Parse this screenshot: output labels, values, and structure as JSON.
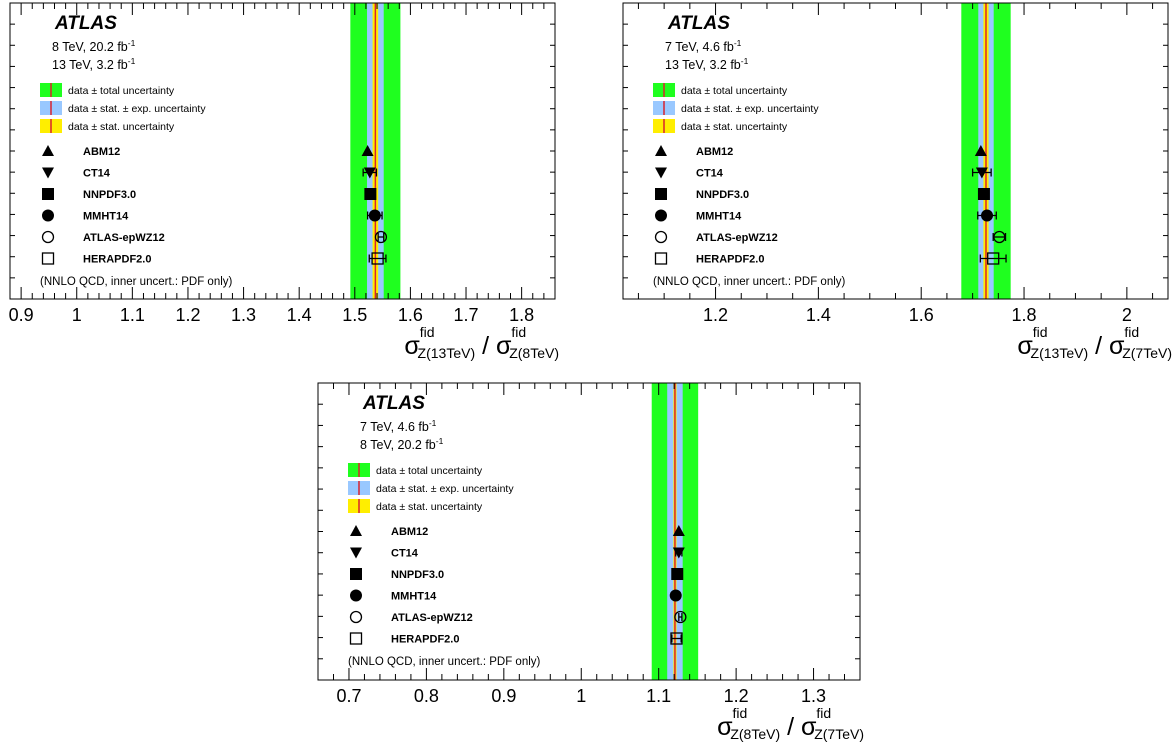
{
  "chart_data": [
    {
      "type": "scatter",
      "experiment": "ATLAS",
      "info_lines": [
        {
          "text": "8 TeV, 20.2 fb",
          "sup": "-1"
        },
        {
          "text": "13 TeV, 3.2 fb",
          "sup": "-1"
        }
      ],
      "legend": [
        "data ± total uncertainty",
        "data ± stat. ± exp. uncertainty",
        "data ± stat. uncertainty"
      ],
      "note": "(NNLO QCD, inner uncert.: PDF only)",
      "xlabel": {
        "sigma": "σ",
        "sup": "fid",
        "sub1": "Z(13TeV)",
        "slash": "/",
        "sub2": "Z(8TeV)"
      },
      "xlim": [
        0.88,
        1.86
      ],
      "ticks": [
        0.9,
        1.0,
        1.1,
        1.2,
        1.3,
        1.4,
        1.5,
        1.6,
        1.7,
        1.8
      ],
      "tick_labels": [
        "0.9",
        "1",
        "1.1",
        "1.2",
        "1.3",
        "1.4",
        "1.5",
        "1.6",
        "1.7",
        "1.8"
      ],
      "minor_step": 0.02,
      "data": {
        "central": 1.537,
        "stat": 0.005,
        "stat_exp": 0.015,
        "total": 0.045
      },
      "predictions": [
        {
          "name": "ABM12",
          "marker": "triangle-up",
          "value": 1.523,
          "err": 0.0
        },
        {
          "name": "CT14",
          "marker": "triangle-down",
          "value": 1.527,
          "err": 0.012
        },
        {
          "name": "NNPDF3.0",
          "marker": "square",
          "value": 1.528,
          "err": 0.005
        },
        {
          "name": "MMHT14",
          "marker": "circle",
          "value": 1.536,
          "err": 0.013
        },
        {
          "name": "ATLAS-epWZ12",
          "marker": "circle-open",
          "value": 1.547,
          "err": 0.005
        },
        {
          "name": "HERAPDF2.0",
          "marker": "square-open",
          "value": 1.541,
          "err": 0.015
        }
      ]
    },
    {
      "type": "scatter",
      "experiment": "ATLAS",
      "info_lines": [
        {
          "text": "7 TeV, 4.6 fb",
          "sup": "-1"
        },
        {
          "text": "13 TeV, 3.2 fb",
          "sup": "-1"
        }
      ],
      "legend": [
        "data ± total uncertainty",
        "data ± stat. ± exp. uncertainty",
        "data ± stat. uncertainty"
      ],
      "note": "(NNLO QCD, inner uncert.: PDF only)",
      "xlabel": {
        "sigma": "σ",
        "sup": "fid",
        "sub1": "Z(13TeV)",
        "slash": "/",
        "sub2": "Z(7TeV)"
      },
      "xlim": [
        1.02,
        2.08
      ],
      "ticks": [
        1.2,
        1.4,
        1.6,
        1.8,
        2.0
      ],
      "tick_labels": [
        "1.2",
        "1.4",
        "1.6",
        "1.8",
        "2"
      ],
      "minor_step": 0.05,
      "data": {
        "central": 1.726,
        "stat": 0.005,
        "stat_exp": 0.015,
        "total": 0.048
      },
      "predictions": [
        {
          "name": "ABM12",
          "marker": "triangle-up",
          "value": 1.716,
          "err": 0.0
        },
        {
          "name": "CT14",
          "marker": "triangle-down",
          "value": 1.718,
          "err": 0.018
        },
        {
          "name": "NNPDF3.0",
          "marker": "square",
          "value": 1.722,
          "err": 0.007
        },
        {
          "name": "MMHT14",
          "marker": "circle",
          "value": 1.728,
          "err": 0.018
        },
        {
          "name": "ATLAS-epWZ12",
          "marker": "circle-open",
          "value": 1.752,
          "err": 0.012
        },
        {
          "name": "HERAPDF2.0",
          "marker": "square-open",
          "value": 1.74,
          "err": 0.025
        }
      ]
    },
    {
      "type": "scatter",
      "experiment": "ATLAS",
      "info_lines": [
        {
          "text": "7 TeV, 4.6 fb",
          "sup": "-1"
        },
        {
          "text": "8 TeV, 20.2 fb",
          "sup": "-1"
        }
      ],
      "legend": [
        "data ± total uncertainty",
        "data ± stat. ± exp. uncertainty",
        "data ± stat. uncertainty"
      ],
      "note": "(NNLO QCD, inner uncert.: PDF only)",
      "xlabel": {
        "sigma": "σ",
        "sup": "fid",
        "sub1": "Z(8TeV)",
        "slash": "/",
        "sub2": "Z(7TeV)"
      },
      "xlim": [
        0.66,
        1.36
      ],
      "ticks": [
        0.7,
        0.8,
        0.9,
        1.0,
        1.1,
        1.2,
        1.3
      ],
      "tick_labels": [
        "0.7",
        "0.8",
        "0.9",
        "1",
        "1.1",
        "1.2",
        "1.3"
      ],
      "minor_step": 0.02,
      "data": {
        "central": 1.121,
        "stat": 0.002,
        "stat_exp": 0.01,
        "total": 0.03
      },
      "predictions": [
        {
          "name": "ABM12",
          "marker": "triangle-up",
          "value": 1.126,
          "err": 0.0
        },
        {
          "name": "CT14",
          "marker": "triangle-down",
          "value": 1.126,
          "err": 0.004
        },
        {
          "name": "NNPDF3.0",
          "marker": "square",
          "value": 1.124,
          "err": 0.003
        },
        {
          "name": "MMHT14",
          "marker": "circle",
          "value": 1.122,
          "err": 0.004
        },
        {
          "name": "ATLAS-epWZ12",
          "marker": "circle-open",
          "value": 1.128,
          "err": 0.002
        },
        {
          "name": "HERAPDF2.0",
          "marker": "square-open",
          "value": 1.123,
          "err": 0.006
        }
      ]
    }
  ],
  "colors": {
    "total_band": "#1fff1f",
    "stat_exp_band": "#99c8ff",
    "stat_band": "#ffee00",
    "central_line": "#d9232e"
  }
}
